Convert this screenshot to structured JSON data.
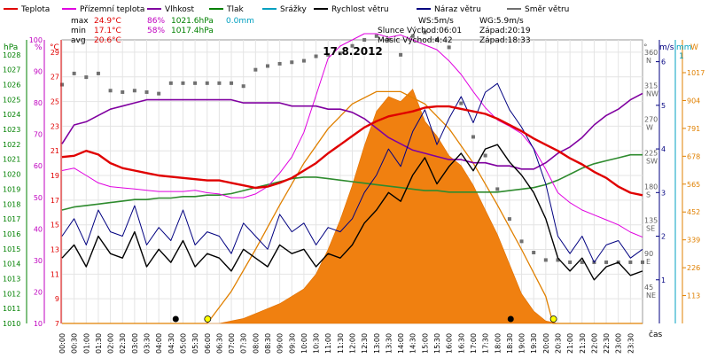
{
  "chart_data": {
    "type": "line",
    "title": "17.8.2012",
    "x_axis": {
      "label": "čas",
      "ticks": [
        "00:00",
        "00:30",
        "01:00",
        "01:30",
        "02:00",
        "02:30",
        "03:00",
        "03:30",
        "04:00",
        "04:30",
        "05:00",
        "05:30",
        "06:00",
        "06:30",
        "07:00",
        "07:30",
        "08:00",
        "08:30",
        "09:00",
        "09:30",
        "10:00",
        "10:30",
        "11:00",
        "11:30",
        "12:00",
        "12:30",
        "13:00",
        "13:30",
        "14:00",
        "14:30",
        "15:00",
        "15:30",
        "16:00",
        "16:30",
        "17:00",
        "17:30",
        "18:00",
        "18:30",
        "19:00",
        "19:30",
        "20:00",
        "20:30",
        "21:00",
        "21:30",
        "22:00",
        "22:30",
        "23:00",
        "23:30"
      ],
      "range_hours": [
        0,
        24
      ]
    },
    "axes": {
      "pressure": {
        "unit": "hPa",
        "color": "#008000",
        "range": [
          1010,
          1029
        ],
        "ticks": [
          "1010",
          "1011",
          "1012",
          "1013",
          "1014",
          "1015",
          "1016",
          "1017",
          "1018",
          "1019",
          "1020",
          "1021",
          "1022",
          "1023",
          "1024",
          "1025",
          "1026",
          "1027",
          "1028"
        ]
      },
      "humidity": {
        "unit": "%",
        "color": "#c000c0",
        "range": [
          10,
          100
        ],
        "ticks": [
          "10",
          "20",
          "30",
          "40",
          "50",
          "60",
          "70",
          "80",
          "90",
          "100"
        ]
      },
      "temperature": {
        "unit": "°C",
        "color": "#e00000",
        "range": [
          7,
          30
        ],
        "ticks": [
          "7",
          "9",
          "11",
          "13",
          "15",
          "17",
          "19",
          "21",
          "23",
          "25",
          "27",
          "29"
        ]
      },
      "direction": {
        "unit": "°",
        "color": "#606060",
        "range": [
          0,
          380
        ],
        "ticks": [
          {
            "deg": "45",
            "dir": "NE"
          },
          {
            "deg": "90",
            "dir": "E"
          },
          {
            "deg": "135",
            "dir": "SE"
          },
          {
            "deg": "180",
            "dir": "S"
          },
          {
            "deg": "225",
            "dir": "SW"
          },
          {
            "deg": "270",
            "dir": "W"
          },
          {
            "deg": "315",
            "dir": "NW"
          },
          {
            "deg": "360",
            "dir": "N"
          }
        ]
      },
      "wind": {
        "unit": "m/s",
        "color": "#000080",
        "range": [
          0,
          6.5
        ],
        "ticks": [
          "1",
          "2",
          "3",
          "4",
          "5",
          "6"
        ]
      },
      "rain": {
        "unit": "mm",
        "color": "#00a0c0",
        "top_label": "1"
      },
      "radiation": {
        "unit": "W",
        "color": "#e08000",
        "range": [
          0,
          1150
        ],
        "ticks": [
          "113",
          "226",
          "339",
          "452",
          "565",
          "678",
          "791",
          "904",
          "1017"
        ]
      }
    },
    "legend": [
      {
        "name": "Teplota",
        "color": "#e00000"
      },
      {
        "name": "Přízemní teplota",
        "color": "#e000e0"
      },
      {
        "name": "Vlhkost",
        "color": "#8000a0"
      },
      {
        "name": "Tlak",
        "color": "#008000"
      },
      {
        "name": "Srážky",
        "color": "#00a0c0"
      },
      {
        "name": "Rychlost větru",
        "color": "#000000"
      },
      {
        "name": "Náraz větru",
        "color": "#000080"
      },
      {
        "name": "Směr větru",
        "color": "#707070"
      }
    ],
    "stats": {
      "max": {
        "label": "max",
        "temp": "24.9°C",
        "hum": "86%",
        "press": "1021.6hPa",
        "rain": "0.0mm"
      },
      "min": {
        "label": "min",
        "temp": "17.1°C",
        "hum": "58%",
        "press": "1017.4hPa"
      },
      "avg": {
        "label": "avg",
        "temp": "20.6°C"
      }
    },
    "info": {
      "ws": "WS:5m/s",
      "wg": "WG:5.9m/s",
      "sun": "Slunce Východ:06:01",
      "sun_set": "Západ:20:19",
      "moon": "Měsíc  Východ:4:42",
      "moon_set": "Západ:18:33"
    },
    "series": {
      "temperature": {
        "name": "Teplota",
        "x": [
          0,
          0.5,
          1,
          1.5,
          2,
          2.5,
          3,
          3.5,
          4,
          4.5,
          5,
          5.5,
          6,
          6.5,
          7,
          7.5,
          8,
          8.5,
          9,
          9.5,
          10,
          10.5,
          11,
          11.5,
          12,
          12.5,
          13,
          13.5,
          14,
          14.5,
          15,
          15.5,
          16,
          16.5,
          17,
          17.5,
          18,
          18.5,
          19,
          19.5,
          20,
          20.5,
          21,
          21.5,
          22,
          22.5,
          23,
          23.5,
          24
        ],
        "y": [
          20.5,
          20.6,
          21.0,
          20.7,
          20.0,
          19.6,
          19.4,
          19.2,
          19.0,
          18.9,
          18.8,
          18.7,
          18.6,
          18.6,
          18.4,
          18.2,
          18.0,
          18.1,
          18.4,
          18.8,
          19.4,
          20.0,
          20.8,
          21.5,
          22.2,
          22.9,
          23.4,
          23.8,
          24.0,
          24.2,
          24.5,
          24.6,
          24.6,
          24.4,
          24.2,
          24.0,
          23.6,
          23.1,
          22.6,
          22.0,
          21.5,
          21.0,
          20.4,
          19.9,
          19.3,
          18.8,
          18.1,
          17.6,
          17.4
        ]
      },
      "ground_temperature": {
        "name": "Přízemní teplota",
        "x": [
          0,
          0.5,
          1,
          1.5,
          2,
          2.5,
          3,
          3.5,
          4,
          4.5,
          5,
          5.5,
          6,
          6.5,
          7,
          7.5,
          8,
          8.5,
          9,
          9.5,
          10,
          10.5,
          11,
          11.5,
          12,
          12.5,
          13,
          13.5,
          14,
          14.5,
          15,
          15.5,
          16,
          16.5,
          17,
          17.5,
          18,
          18.5,
          19,
          19.5,
          20,
          20.5,
          21,
          21.5,
          22,
          22.5,
          23,
          23.5,
          24
        ],
        "y": [
          19.4,
          19.6,
          19.0,
          18.4,
          18.1,
          18.0,
          17.9,
          17.8,
          17.7,
          17.7,
          17.7,
          17.8,
          17.6,
          17.5,
          17.2,
          17.2,
          17.5,
          18.1,
          19.2,
          20.5,
          22.5,
          25.5,
          28.5,
          29.5,
          30.0,
          30.5,
          30.5,
          30.2,
          30.4,
          30.0,
          29.6,
          29.2,
          28.3,
          27.2,
          25.8,
          24.5,
          23.5,
          23.0,
          22.4,
          21.2,
          19.5,
          17.6,
          16.8,
          16.2,
          15.8,
          15.4,
          15.0,
          14.4,
          14.0
        ]
      },
      "humidity": {
        "name": "Vlhkost",
        "x": [
          0,
          0.5,
          1,
          1.5,
          2,
          2.5,
          3,
          3.5,
          4,
          4.5,
          5,
          5.5,
          6,
          6.5,
          7,
          7.5,
          8,
          8.5,
          9,
          9.5,
          10,
          10.5,
          11,
          11.5,
          12,
          12.5,
          13,
          13.5,
          14,
          14.5,
          15,
          15.5,
          16,
          16.5,
          17,
          17.5,
          18,
          18.5,
          19,
          19.5,
          20,
          20.5,
          21,
          21.5,
          22,
          22.5,
          23,
          23.5,
          24
        ],
        "y": [
          67,
          73,
          74,
          76,
          78,
          79,
          80,
          81,
          81,
          81,
          81,
          81,
          81,
          81,
          81,
          80,
          80,
          80,
          80,
          79,
          79,
          79,
          78,
          78,
          77,
          75,
          72,
          69,
          67,
          65,
          64,
          63,
          62,
          62,
          61,
          61,
          60,
          60,
          59,
          59,
          61,
          64,
          66,
          69,
          73,
          76,
          78,
          81,
          83
        ]
      },
      "pressure": {
        "name": "Tlak",
        "x": [
          0,
          0.5,
          1,
          1.5,
          2,
          2.5,
          3,
          3.5,
          4,
          4.5,
          5,
          5.5,
          6,
          6.5,
          7,
          7.5,
          8,
          8.5,
          9,
          9.5,
          10,
          10.5,
          11,
          11.5,
          12,
          12.5,
          13,
          13.5,
          14,
          14.5,
          15,
          15.5,
          16,
          16.5,
          17,
          17.5,
          18,
          18.5,
          19,
          19.5,
          20,
          20.5,
          21,
          21.5,
          22,
          22.5,
          23,
          23.5,
          24
        ],
        "y": [
          1017.6,
          1017.8,
          1017.9,
          1018.0,
          1018.1,
          1018.2,
          1018.3,
          1018.3,
          1018.4,
          1018.4,
          1018.5,
          1018.5,
          1018.6,
          1018.6,
          1018.7,
          1018.9,
          1019.1,
          1019.3,
          1019.5,
          1019.7,
          1019.8,
          1019.8,
          1019.7,
          1019.6,
          1019.5,
          1019.4,
          1019.3,
          1019.2,
          1019.1,
          1019.0,
          1018.9,
          1018.9,
          1018.8,
          1018.8,
          1018.8,
          1018.8,
          1018.8,
          1018.9,
          1019.0,
          1019.1,
          1019.3,
          1019.6,
          1020.0,
          1020.4,
          1020.7,
          1020.9,
          1021.1,
          1021.3,
          1021.3
        ]
      },
      "wind_speed": {
        "name": "Rychlost větru",
        "x": [
          0,
          0.5,
          1,
          1.5,
          2,
          2.5,
          3,
          3.5,
          4,
          4.5,
          5,
          5.5,
          6,
          6.5,
          7,
          7.5,
          8,
          8.5,
          9,
          9.5,
          10,
          10.5,
          11,
          11.5,
          12,
          12.5,
          13,
          13.5,
          14,
          14.5,
          15,
          15.5,
          16,
          16.5,
          17,
          17.5,
          18,
          18.5,
          19,
          19.5,
          20,
          20.5,
          21,
          21.5,
          22,
          22.5,
          23,
          23.5,
          24
        ],
        "y": [
          1.5,
          1.8,
          1.3,
          2.0,
          1.6,
          1.5,
          2.1,
          1.3,
          1.7,
          1.4,
          1.9,
          1.3,
          1.6,
          1.5,
          1.2,
          1.7,
          1.5,
          1.3,
          1.8,
          1.6,
          1.7,
          1.3,
          1.6,
          1.5,
          1.8,
          2.3,
          2.6,
          3.0,
          2.8,
          3.4,
          3.8,
          3.2,
          3.6,
          3.9,
          3.5,
          4.0,
          4.1,
          3.7,
          3.4,
          3.0,
          2.4,
          1.5,
          1.2,
          1.5,
          1.0,
          1.3,
          1.4,
          1.1,
          1.2
        ]
      },
      "wind_gust": {
        "name": "Náraz větru",
        "x": [
          0,
          0.5,
          1,
          1.5,
          2,
          2.5,
          3,
          3.5,
          4,
          4.5,
          5,
          5.5,
          6,
          6.5,
          7,
          7.5,
          8,
          8.5,
          9,
          9.5,
          10,
          10.5,
          11,
          11.5,
          12,
          12.5,
          13,
          13.5,
          14,
          14.5,
          15,
          15.5,
          16,
          16.5,
          17,
          17.5,
          18,
          18.5,
          19,
          19.5,
          20,
          20.5,
          21,
          21.5,
          22,
          22.5,
          23,
          23.5,
          24
        ],
        "y": [
          2.0,
          2.4,
          1.8,
          2.6,
          2.1,
          2.0,
          2.7,
          1.8,
          2.2,
          1.9,
          2.6,
          1.8,
          2.1,
          2.0,
          1.6,
          2.3,
          2.0,
          1.7,
          2.5,
          2.1,
          2.3,
          1.8,
          2.2,
          2.1,
          2.4,
          3.0,
          3.4,
          4.0,
          3.6,
          4.4,
          4.9,
          4.1,
          4.7,
          5.2,
          4.6,
          5.3,
          5.5,
          4.9,
          4.5,
          4.0,
          3.2,
          2.0,
          1.6,
          2.0,
          1.4,
          1.8,
          1.9,
          1.5,
          1.7
        ]
      },
      "wind_direction": {
        "name": "Směr větru",
        "x": [
          0,
          0.5,
          1,
          1.5,
          2,
          2.5,
          3,
          3.5,
          4,
          4.5,
          5,
          5.5,
          6,
          6.5,
          7,
          7.5,
          8,
          8.5,
          9,
          9.5,
          10,
          10.5,
          11,
          11.5,
          12,
          12.5,
          13,
          13.5,
          14,
          14.5,
          15,
          15.5,
          16,
          16.5,
          17,
          17.5,
          18,
          18.5,
          19,
          19.5,
          20,
          20.5,
          21,
          21.5,
          22,
          22.5,
          23,
          23.5,
          24
        ],
        "y": [
          320,
          335,
          330,
          335,
          312,
          310,
          312,
          310,
          308,
          322,
          322,
          322,
          322,
          322,
          322,
          318,
          340,
          345,
          348,
          350,
          352,
          358,
          360,
          362,
          372,
          380,
          385,
          380,
          360,
          385,
          390,
          380,
          370,
          295,
          250,
          225,
          180,
          140,
          110,
          95,
          85,
          85,
          82,
          82,
          82,
          82,
          82,
          82,
          82
        ]
      },
      "solar_radiation": {
        "name": "Sluneční záření",
        "x": [
          0,
          6,
          6.5,
          7,
          7.5,
          8,
          8.5,
          9,
          9.5,
          10,
          10.5,
          11,
          11.5,
          12,
          12.5,
          13,
          13.5,
          14,
          14.5,
          15,
          15.5,
          16,
          16.5,
          17,
          17.5,
          18,
          18.5,
          19,
          19.5,
          20,
          20.5,
          24
        ],
        "y": [
          0,
          0,
          0,
          10,
          20,
          40,
          60,
          80,
          110,
          140,
          200,
          300,
          420,
          560,
          720,
          860,
          920,
          900,
          950,
          820,
          760,
          680,
          640,
          560,
          460,
          360,
          240,
          120,
          50,
          10,
          0,
          0
        ]
      },
      "theoretical_radiation": {
        "name": "Teoretické záření",
        "x": [
          0,
          6.0,
          7,
          8,
          9,
          10,
          11,
          12,
          13,
          14,
          15,
          16,
          17,
          18,
          19,
          20,
          20.3,
          24
        ],
        "y": [
          0,
          0,
          130,
          300,
          480,
          650,
          790,
          890,
          940,
          940,
          890,
          790,
          650,
          480,
          300,
          110,
          0,
          0
        ]
      }
    },
    "markers": {
      "moonrise": {
        "time": 4.7
      },
      "sunrise": {
        "time": 6.02
      },
      "moonset": {
        "time": 18.55
      },
      "sunset": {
        "time": 20.32
      }
    }
  }
}
